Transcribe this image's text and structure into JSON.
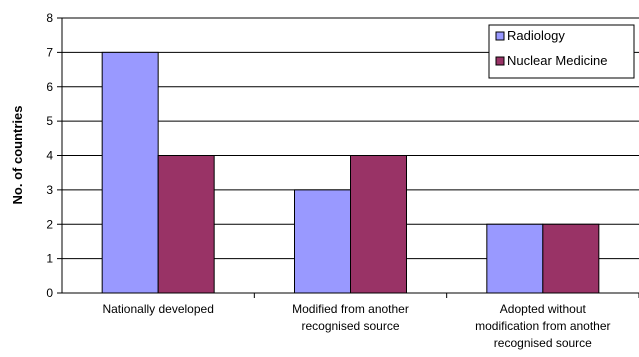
{
  "chart_data": {
    "type": "bar",
    "title": "",
    "xlabel": "",
    "ylabel": "No. of countries",
    "ylim": [
      0,
      8
    ],
    "yticks": [
      0,
      1,
      2,
      3,
      4,
      5,
      6,
      7,
      8
    ],
    "grid": true,
    "legend_position": "top-right",
    "categories": [
      [
        "Nationally developed"
      ],
      [
        "Modified from another",
        "recognised source"
      ],
      [
        "Adopted without",
        "modification from another",
        "recognised source"
      ]
    ],
    "series": [
      {
        "name": "Radiology",
        "values": [
          7,
          3,
          2
        ],
        "color": "#9999ff"
      },
      {
        "name": "Nuclear Medicine",
        "values": [
          4,
          4,
          2
        ],
        "color": "#993366"
      }
    ]
  }
}
